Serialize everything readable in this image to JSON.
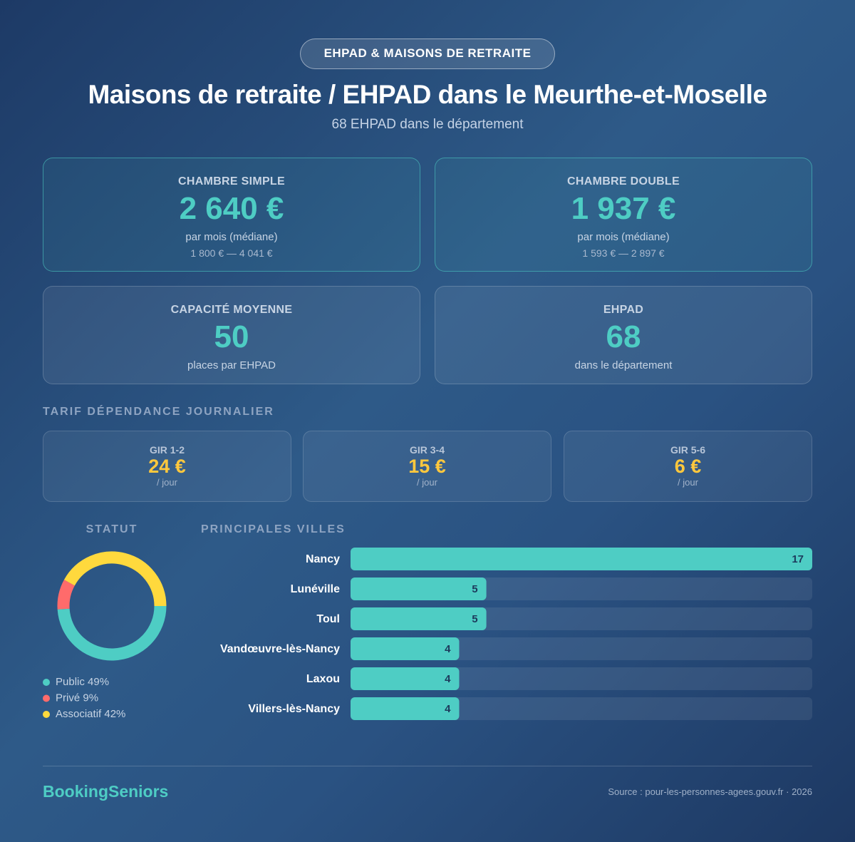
{
  "badge": "EHPAD & MAISONS DE RETRAITE",
  "title": "Maisons de retraite / EHPAD dans le Meurthe-et-Moselle",
  "subtitle": "68 EHPAD dans le département",
  "cards": [
    {
      "label": "CHAMBRE SIMPLE",
      "value": "2 640 €",
      "note": "par mois (médiane)",
      "range": "1 800 € — 4 041 €"
    },
    {
      "label": "CHAMBRE DOUBLE",
      "value": "1 937 €",
      "note": "par mois (médiane)",
      "range": "1 593 € — 2 897 €"
    },
    {
      "label": "CAPACITÉ MOYENNE",
      "value": 50,
      "note": "places par EHPAD"
    },
    {
      "label": "EHPAD",
      "value": 68,
      "note": "dans le département"
    }
  ],
  "tarif": {
    "heading": "TARIF DÉPENDANCE JOURNALIER",
    "items": [
      {
        "label": "GIR 1-2",
        "value": "24 €",
        "unit": "/ jour"
      },
      {
        "label": "GIR 3-4",
        "value": "15 €",
        "unit": "/ jour"
      },
      {
        "label": "GIR 5-6",
        "value": "6 €",
        "unit": "/ jour"
      }
    ]
  },
  "chart_data": [
    {
      "type": "pie",
      "title": "STATUT",
      "categories": [
        "Public",
        "Privé",
        "Associatif"
      ],
      "values": [
        49,
        9,
        42
      ],
      "value_labels": [
        "49%",
        "9%",
        "42%"
      ],
      "colors": [
        "#4ecdc4",
        "#ff6b6b",
        "#ffd93d"
      ]
    },
    {
      "type": "bar",
      "title": "PRINCIPALES VILLES",
      "categories": [
        "Nancy",
        "Lunéville",
        "Toul",
        "Vandœuvre-lès-Nancy",
        "Laxou",
        "Villers-lès-Nancy"
      ],
      "values": [
        17,
        5,
        5,
        4,
        4,
        4
      ],
      "xlim": [
        0,
        17
      ],
      "color": "#4ecdc4"
    }
  ],
  "footer": {
    "brand": "BookingSeniors",
    "source": "Source : pour-les-personnes-agees.gouv.fr · 2026"
  }
}
